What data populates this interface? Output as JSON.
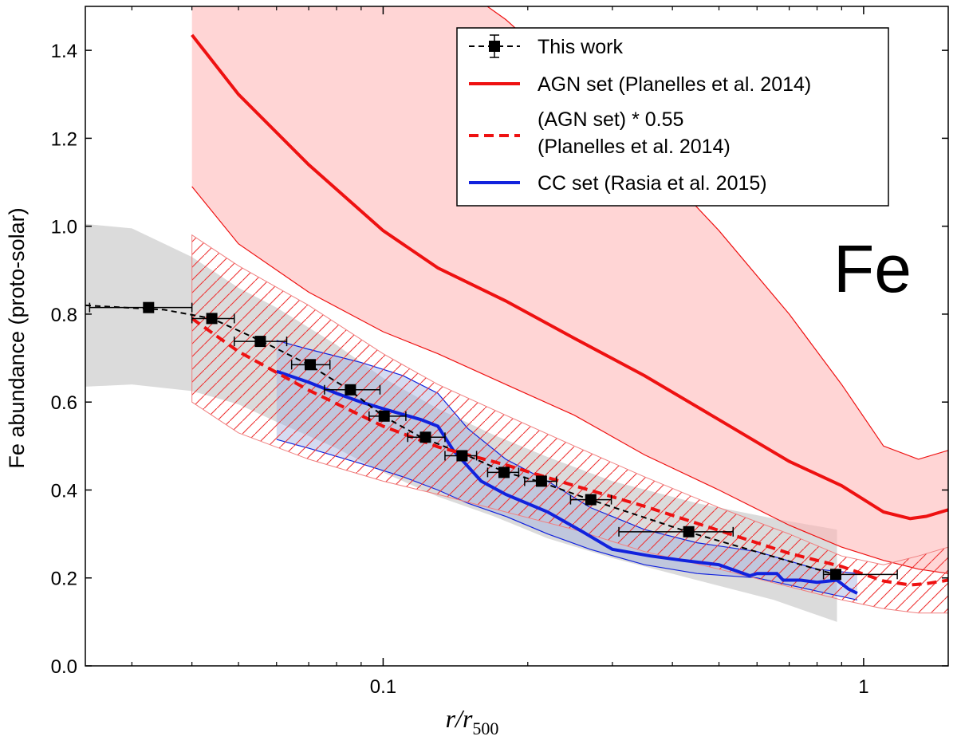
{
  "chart_data": {
    "type": "line",
    "xscale": "log",
    "xlim": [
      0.024,
      1.5
    ],
    "ylim": [
      0.0,
      1.5
    ],
    "xlabel": "r/r",
    "xlabel_sub": "500",
    "ylabel": "Fe abundance (proto-solar)",
    "annotation": "Fe",
    "x_ticks": [
      {
        "value": 0.1,
        "label": "0.1"
      },
      {
        "value": 1,
        "label": "1"
      }
    ],
    "y_ticks": [
      {
        "value": 0.0,
        "label": "0.0"
      },
      {
        "value": 0.2,
        "label": "0.2"
      },
      {
        "value": 0.4,
        "label": "0.4"
      },
      {
        "value": 0.6,
        "label": "0.6"
      },
      {
        "value": 0.8,
        "label": "0.8"
      },
      {
        "value": 1.0,
        "label": "1.0"
      },
      {
        "value": 1.2,
        "label": "1.2"
      },
      {
        "value": 1.4,
        "label": "1.4"
      }
    ],
    "legend": {
      "position": "top-right",
      "entries": [
        {
          "label": "This work",
          "style": "data",
          "color": "#000000"
        },
        {
          "label": "AGN set (Planelles et al. 2014)",
          "style": "solid",
          "color": "#ee1111"
        },
        {
          "label": "(AGN set) * 0.55",
          "label2": "(Planelles et al. 2014)",
          "style": "dashed",
          "color": "#ee1111"
        },
        {
          "label": "CC set (Rasia et al. 2015)",
          "style": "solid",
          "color": "#1122dd"
        }
      ]
    },
    "series": [
      {
        "name": "This work",
        "kind": "points",
        "color": "#000000",
        "points": [
          {
            "x": 0.0325,
            "y": 0.815,
            "xlo": 0.0245,
            "xhi": 0.04
          },
          {
            "x": 0.044,
            "y": 0.79,
            "xlo": 0.04,
            "xhi": 0.049
          },
          {
            "x": 0.0555,
            "y": 0.738,
            "xlo": 0.049,
            "xhi": 0.063
          },
          {
            "x": 0.0705,
            "y": 0.685,
            "xlo": 0.0645,
            "xhi": 0.0775
          },
          {
            "x": 0.0855,
            "y": 0.628,
            "xlo": 0.0755,
            "xhi": 0.0985
          },
          {
            "x": 0.1005,
            "y": 0.568,
            "xlo": 0.0935,
            "xhi": 0.1115
          },
          {
            "x": 0.1225,
            "y": 0.52,
            "xlo": 0.1125,
            "xhi": 0.1345
          },
          {
            "x": 0.146,
            "y": 0.478,
            "xlo": 0.1345,
            "xhi": 0.1565
          },
          {
            "x": 0.1785,
            "y": 0.44,
            "xlo": 0.165,
            "xhi": 0.1915
          },
          {
            "x": 0.2135,
            "y": 0.42,
            "xlo": 0.197,
            "xhi": 0.2295
          },
          {
            "x": 0.2705,
            "y": 0.378,
            "xlo": 0.2455,
            "xhi": 0.2985
          },
          {
            "x": 0.4325,
            "y": 0.305,
            "xlo": 0.3095,
            "xhi": 0.535
          },
          {
            "x": 0.875,
            "y": 0.208,
            "xlo": 0.825,
            "xhi": 1.175
          }
        ],
        "fit_x": [
          0.024,
          0.035,
          0.044,
          0.056,
          0.07,
          0.085,
          0.1,
          0.12,
          0.15,
          0.18,
          0.21,
          0.27,
          0.43,
          0.87
        ],
        "fit_y": [
          0.82,
          0.81,
          0.79,
          0.738,
          0.685,
          0.628,
          0.568,
          0.52,
          0.478,
          0.44,
          0.42,
          0.378,
          0.305,
          0.208
        ],
        "band_x": [
          0.024,
          0.03,
          0.04,
          0.05,
          0.06,
          0.08,
          0.1,
          0.13,
          0.17,
          0.22,
          0.3,
          0.45,
          0.65,
          0.88
        ],
        "band_hi": [
          1.005,
          0.995,
          0.93,
          0.86,
          0.815,
          0.73,
          0.655,
          0.585,
          0.525,
          0.475,
          0.42,
          0.37,
          0.335,
          0.31
        ],
        "band_lo": [
          0.635,
          0.64,
          0.625,
          0.595,
          0.555,
          0.495,
          0.44,
          0.385,
          0.34,
          0.29,
          0.245,
          0.195,
          0.15,
          0.1
        ]
      },
      {
        "name": "AGN set (Planelles et al. 2014)",
        "kind": "line",
        "color": "#ee1111",
        "x": [
          0.04,
          0.05,
          0.07,
          0.1,
          0.13,
          0.18,
          0.25,
          0.35,
          0.5,
          0.7,
          0.9,
          1.1,
          1.25,
          1.35,
          1.5
        ],
        "y": [
          1.435,
          1.3,
          1.14,
          0.99,
          0.905,
          0.83,
          0.745,
          0.66,
          0.56,
          0.465,
          0.41,
          0.35,
          0.335,
          0.34,
          0.355
        ],
        "band_x": [
          0.04,
          0.05,
          0.07,
          0.1,
          0.13,
          0.18,
          0.25,
          0.35,
          0.5,
          0.7,
          0.9,
          1.1,
          1.3,
          1.5
        ],
        "band_hi": [
          1.6,
          1.65,
          1.68,
          1.64,
          1.58,
          1.47,
          1.33,
          1.17,
          0.99,
          0.8,
          0.64,
          0.5,
          0.47,
          0.49
        ],
        "band_lo": [
          1.09,
          0.96,
          0.85,
          0.76,
          0.71,
          0.64,
          0.57,
          0.48,
          0.4,
          0.32,
          0.27,
          0.24,
          0.22,
          0.21
        ]
      },
      {
        "name": "(AGN set) * 0.55",
        "kind": "line",
        "color": "#ee1111",
        "dashed": true,
        "x": [
          0.04,
          0.05,
          0.07,
          0.1,
          0.13,
          0.18,
          0.25,
          0.35,
          0.5,
          0.7,
          0.9,
          1.1,
          1.25,
          1.35,
          1.5
        ],
        "y": [
          0.79,
          0.715,
          0.627,
          0.545,
          0.498,
          0.457,
          0.41,
          0.363,
          0.308,
          0.256,
          0.226,
          0.193,
          0.184,
          0.187,
          0.195
        ],
        "band_x": [
          0.04,
          0.05,
          0.07,
          0.1,
          0.13,
          0.18,
          0.25,
          0.35,
          0.5,
          0.7,
          0.9,
          1.1,
          1.3,
          1.5
        ],
        "band_hi": [
          0.98,
          0.91,
          0.82,
          0.71,
          0.64,
          0.57,
          0.5,
          0.43,
          0.36,
          0.3,
          0.25,
          0.23,
          0.25,
          0.27
        ],
        "band_lo": [
          0.6,
          0.53,
          0.47,
          0.42,
          0.39,
          0.35,
          0.31,
          0.26,
          0.22,
          0.18,
          0.15,
          0.13,
          0.12,
          0.12
        ]
      },
      {
        "name": "CC set (Rasia et al. 2015)",
        "kind": "line",
        "color": "#1122dd",
        "x": [
          0.06,
          0.07,
          0.08,
          0.09,
          0.1,
          0.12,
          0.13,
          0.14,
          0.16,
          0.18,
          0.22,
          0.26,
          0.3,
          0.36,
          0.42,
          0.5,
          0.58,
          0.6,
          0.66,
          0.68,
          0.74,
          0.8,
          0.88,
          0.93,
          0.97
        ],
        "y": [
          0.67,
          0.645,
          0.62,
          0.6,
          0.585,
          0.56,
          0.545,
          0.49,
          0.42,
          0.39,
          0.35,
          0.305,
          0.265,
          0.25,
          0.24,
          0.23,
          0.205,
          0.21,
          0.21,
          0.195,
          0.195,
          0.19,
          0.195,
          0.175,
          0.165
        ],
        "band_x": [
          0.06,
          0.07,
          0.09,
          0.11,
          0.13,
          0.15,
          0.18,
          0.22,
          0.27,
          0.35,
          0.45,
          0.6,
          0.8,
          0.97
        ],
        "band_hi": [
          0.74,
          0.72,
          0.69,
          0.66,
          0.62,
          0.54,
          0.47,
          0.42,
          0.36,
          0.31,
          0.28,
          0.26,
          0.22,
          0.21
        ],
        "band_lo": [
          0.515,
          0.495,
          0.46,
          0.43,
          0.4,
          0.37,
          0.34,
          0.3,
          0.265,
          0.23,
          0.21,
          0.2,
          0.17,
          0.15
        ]
      }
    ]
  }
}
